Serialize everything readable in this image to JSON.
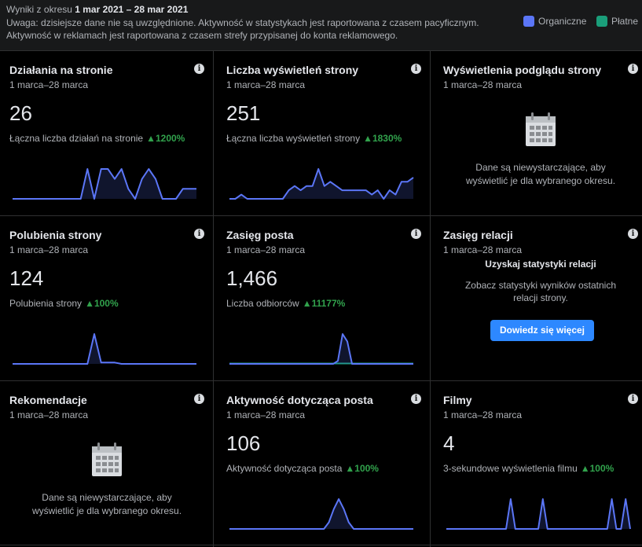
{
  "header": {
    "period_prefix": "Wyniki z okresu ",
    "period_range": "1 mar 2021 – 28 mar 2021",
    "note_line1": "Uwaga: dzisiejsze dane nie są uwzględnione. Aktywność w statystykach jest raportowana z czasem pacyficznym.",
    "note_line2": "Aktywność w reklamach jest raportowana z czasem strefy przypisanej do konta reklamowego.",
    "legend_organic": "Organiczne",
    "legend_paid": "Płatne"
  },
  "colors": {
    "organic": "#5b76f7",
    "paid": "#1a9e7a"
  },
  "info_symbol": "i",
  "cards": [
    {
      "title": "Działania na stronie",
      "date": "1 marca–28 marca",
      "value": "26",
      "sub": "Łączna liczba działań na stronie",
      "delta": "▲1200%",
      "chart_data": {
        "type": "line",
        "series": [
          {
            "values": [
              0,
              0,
              0,
              0,
              0,
              0,
              0,
              0,
              0,
              0,
              0,
              3,
              0,
              3,
              3,
              2,
              3,
              1,
              0,
              2,
              3,
              2,
              0,
              0,
              0,
              1,
              1,
              1
            ]
          }
        ]
      }
    },
    {
      "title": "Liczba wyświetleń strony",
      "date": "1 marca–28 marca",
      "value": "251",
      "sub": "Łączna liczba wyświetleń strony",
      "delta": "▲1830%",
      "chart_data": {
        "type": "line",
        "series": [
          {
            "values": [
              0,
              0,
              1,
              0,
              0,
              0,
              0,
              0,
              0,
              0,
              2,
              3,
              2,
              3,
              3,
              7,
              3,
              4,
              3,
              2,
              2,
              2,
              2,
              2,
              1,
              2,
              0,
              2,
              1,
              4,
              4,
              5
            ]
          }
        ]
      }
    },
    {
      "title": "Wyświetlenia podglądu strony",
      "date": "1 marca–28 marca",
      "nodata1": "Dane są niewystarczające, aby",
      "nodata2": "wyświetlić je dla wybranego okresu."
    },
    {
      "title": "Polubienia strony",
      "date": "1 marca–28 marca",
      "value": "124",
      "sub": "Polubienia strony",
      "delta": "▲100%",
      "chart_data": {
        "type": "line",
        "series": [
          {
            "values": [
              0,
              0,
              0,
              0,
              0,
              0,
              0,
              0,
              0,
              0,
              0,
              0,
              22,
              1,
              1,
              1,
              0,
              0,
              0,
              0,
              0,
              0,
              0,
              0,
              0,
              0,
              0,
              0
            ]
          }
        ]
      }
    },
    {
      "title": "Zasięg posta",
      "date": "1 marca–28 marca",
      "value": "1,466",
      "sub": "Liczba odbiorców",
      "delta": "▲11177%",
      "chart_data": {
        "type": "line",
        "series": [
          {
            "values": [
              5,
              5,
              5,
              5,
              5,
              5,
              5,
              5,
              5,
              5,
              5,
              5,
              5,
              5,
              5,
              5,
              5,
              5,
              5,
              5,
              5,
              5,
              5,
              5,
              5,
              5,
              5,
              5,
              5,
              5,
              5
            ]
          },
          {
            "values": [
              0,
              0,
              0,
              0,
              0,
              0,
              0,
              0,
              0,
              0,
              0,
              0,
              0,
              0,
              0,
              0,
              0,
              0,
              0,
              0,
              0,
              0,
              0,
              40,
              400,
              300,
              0,
              0,
              0,
              0,
              0,
              0,
              0,
              0,
              0,
              0,
              0,
              0,
              0,
              0
            ]
          }
        ]
      }
    },
    {
      "title": "Zasięg relacji",
      "date": "1 marca–28 marca",
      "rel_head": "Uzyskaj statystyki relacji",
      "rel_text": "Zobacz statystyki wyników ostatnich relacji strony.",
      "button": "Dowiedz się więcej"
    },
    {
      "title": "Rekomendacje",
      "date": "1 marca–28 marca",
      "nodata1": "Dane są niewystarczające, aby",
      "nodata2": "wyświetlić je dla wybranego okresu."
    },
    {
      "title": "Aktywność dotycząca posta",
      "date": "1 marca–28 marca",
      "value": "106",
      "sub": "Aktywność dotycząca posta",
      "delta": "▲100%",
      "chart_data": {
        "type": "line",
        "series": [
          {
            "values": [
              0,
              0,
              0,
              0,
              0,
              0,
              0,
              0,
              0,
              0,
              0,
              0,
              0,
              0,
              0,
              0,
              0,
              0,
              0,
              0,
              2,
              6,
              9,
              6,
              2,
              0,
              0,
              0,
              0,
              0,
              0,
              0,
              0,
              0,
              0,
              0,
              0,
              0
            ]
          }
        ]
      }
    },
    {
      "title": "Filmy",
      "date": "1 marca–28 marca",
      "value": "4",
      "sub": "3-sekundowe wyświetlenia filmu",
      "delta": "▲100%",
      "chart_data": {
        "type": "line",
        "series": [
          {
            "values": [
              0,
              0,
              0,
              0,
              0,
              0,
              0,
              0,
              0,
              0,
              0,
              0,
              0,
              0,
              1,
              0,
              0,
              0,
              0,
              0,
              0,
              1,
              0,
              0,
              0,
              0,
              0,
              0,
              0,
              0,
              0,
              0,
              0,
              0,
              0,
              0,
              1,
              0,
              0,
              1,
              0
            ]
          }
        ]
      }
    }
  ]
}
